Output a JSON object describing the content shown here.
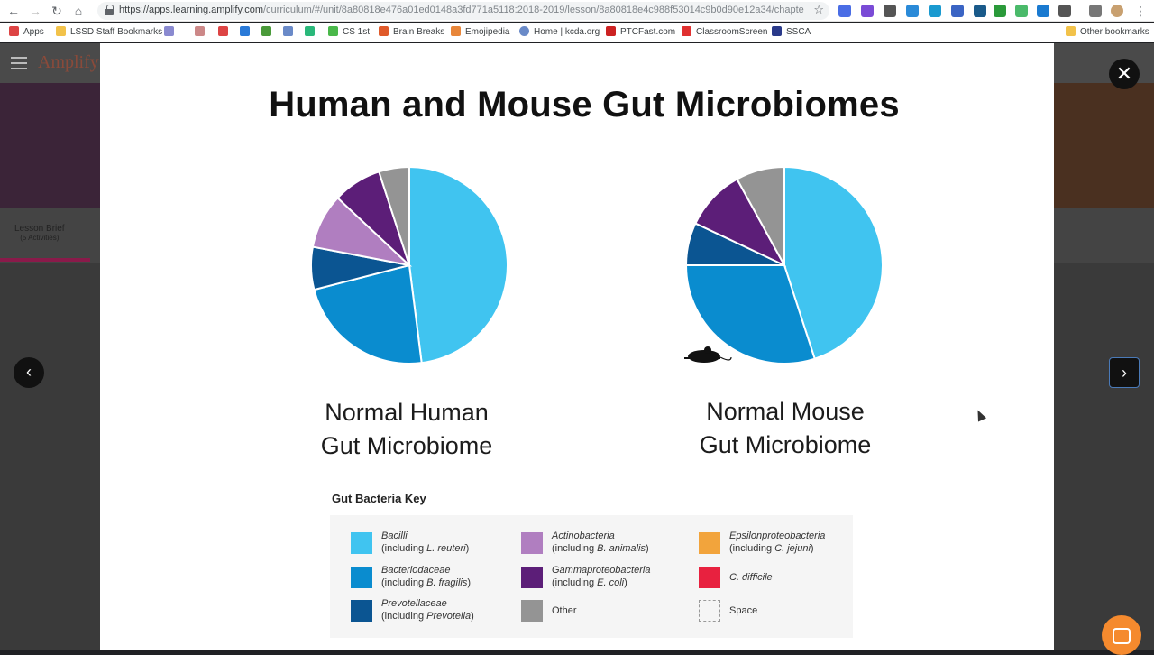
{
  "browser": {
    "url_host": "https://apps.learning.amplify.com",
    "url_path": "/curriculum/#/unit/8a80818e476a01ed0148a3fd771a5118:2018-2019/lesson/8a80818e4c988f53014c9b0d90e12a34/chapter",
    "bookmarks": [
      "Apps",
      "LSSD Staff Bookmarks",
      "CS 1st",
      "Brain Breaks",
      "Emojipedia",
      "Home | kcda.org",
      "PTCFast.com",
      "ClassroomScreen",
      "SSCA"
    ],
    "other_bookmarks": "Other bookmarks"
  },
  "page": {
    "brand": "Amplify",
    "lesson_brief": "Lesson Brief",
    "lesson_brief_sub": "(5 Activities)"
  },
  "slide": {
    "title": "Human and Mouse Gut Microbiomes",
    "human_label_line1": "Normal Human",
    "human_label_line2": "Gut Microbiome",
    "mouse_label_line1": "Normal Mouse",
    "mouse_label_line2": "Gut Microbiome",
    "key_title": "Gut Bacteria Key",
    "key": [
      {
        "name": "Bacilli",
        "detail_prefix": "(including ",
        "detail_em": "L. reuteri",
        "detail_suffix": ")",
        "color": "#40c4f0"
      },
      {
        "name": "Bacteriodaceae",
        "detail_prefix": "(including ",
        "detail_em": "B. fragilis",
        "detail_suffix": ")",
        "color": "#0a8ccf"
      },
      {
        "name": "Prevotellaceae",
        "detail_prefix": "(including ",
        "detail_em": "Prevotella",
        "detail_suffix": ")",
        "color": "#0b5592"
      },
      {
        "name": "Actinobacteria",
        "detail_prefix": "(including ",
        "detail_em": "B. animalis",
        "detail_suffix": ")",
        "color": "#b07ec0"
      },
      {
        "name": "Gammaproteobacteria",
        "detail_prefix": "(including ",
        "detail_em": "E. coli",
        "detail_suffix": ")",
        "color": "#5c1e78"
      },
      {
        "name": "Other",
        "color": "#949494"
      },
      {
        "name": "Epsilonproteobacteria",
        "detail_prefix": "(including ",
        "detail_em": "C. jejuni",
        "detail_suffix": ")",
        "color": "#f2a43c"
      },
      {
        "name": "C. difficile",
        "color": "#e8213f"
      },
      {
        "name": "Space",
        "color": "#ffffff"
      }
    ]
  },
  "chart_data": [
    {
      "type": "pie",
      "title": "Normal Human Gut Microbiome",
      "categories": [
        "Bacilli",
        "Bacteriodaceae",
        "Prevotellaceae",
        "Actinobacteria",
        "Gammaproteobacteria",
        "Other"
      ],
      "values": [
        48,
        23,
        7,
        9,
        8,
        5
      ]
    },
    {
      "type": "pie",
      "title": "Normal Mouse Gut Microbiome",
      "categories": [
        "Bacilli",
        "Bacteriodaceae",
        "Prevotellaceae",
        "Gammaproteobacteria",
        "Other"
      ],
      "values": [
        45,
        30,
        7,
        10,
        8
      ]
    }
  ]
}
